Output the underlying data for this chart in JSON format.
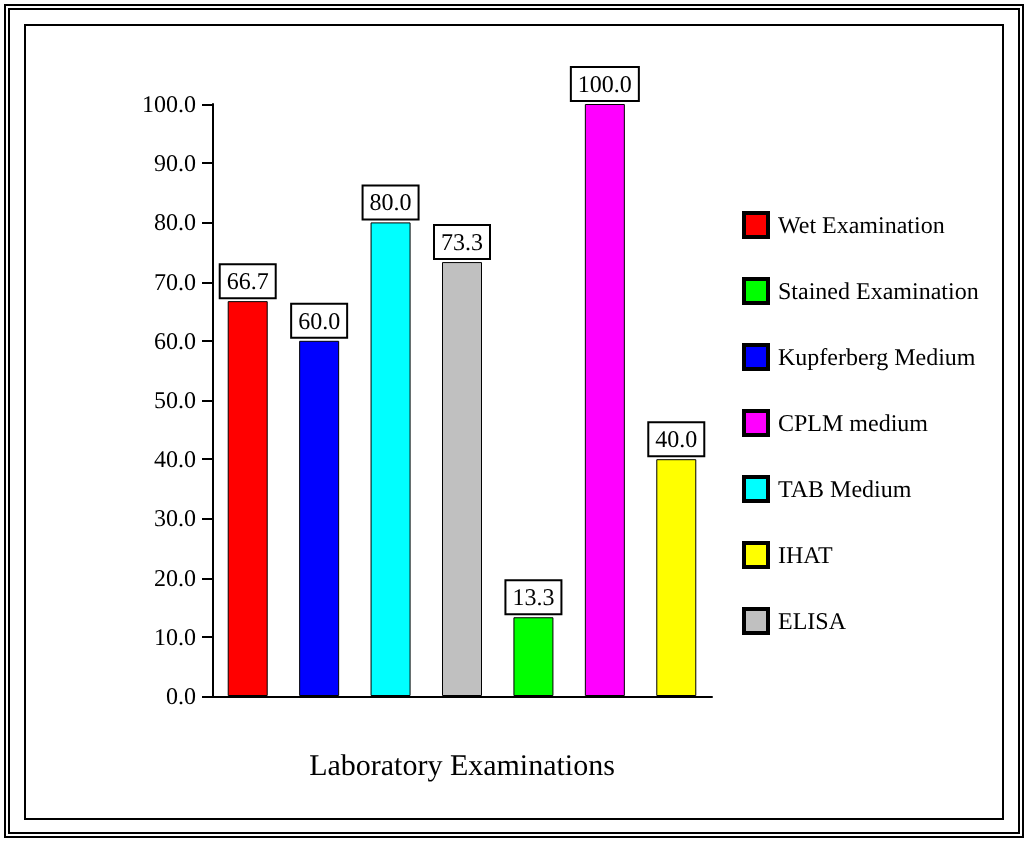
{
  "chart_data": {
    "type": "bar",
    "xlabel": "Laboratory Examinations",
    "categories": [
      null,
      null,
      null,
      null,
      null,
      null,
      null
    ],
    "series": [
      {
        "name": "Wet Examination",
        "color": "#ff0000",
        "values": [
          66.7,
          null,
          null,
          null,
          null,
          null,
          null
        ],
        "value_labels": [
          "66.7",
          null,
          null,
          null,
          null,
          null,
          null
        ]
      },
      {
        "name": "Stained Examination",
        "color": "#00ff00",
        "values": [
          null,
          null,
          null,
          null,
          13.3,
          null,
          null
        ],
        "value_labels": [
          null,
          null,
          null,
          null,
          "13.3",
          null,
          null
        ]
      },
      {
        "name": "Kupferberg Medium",
        "color": "#0000ff",
        "values": [
          null,
          60.0,
          null,
          null,
          null,
          null,
          null
        ],
        "value_labels": [
          null,
          "60.0",
          null,
          null,
          null,
          null,
          null
        ]
      },
      {
        "name": "CPLM medium",
        "color": "#ff00ff",
        "values": [
          null,
          null,
          null,
          null,
          null,
          100.0,
          null
        ],
        "value_labels": [
          null,
          null,
          null,
          null,
          null,
          "100.0",
          null
        ]
      },
      {
        "name": "TAB Medium",
        "color": "#00ffff",
        "values": [
          null,
          null,
          80.0,
          null,
          null,
          null,
          null
        ],
        "value_labels": [
          null,
          null,
          "80.0",
          null,
          null,
          null,
          null
        ]
      },
      {
        "name": "IHAT",
        "color": "#ffff00",
        "values": [
          null,
          null,
          null,
          null,
          null,
          null,
          40.0
        ],
        "value_labels": [
          null,
          null,
          null,
          null,
          null,
          null,
          "40.0"
        ]
      },
      {
        "name": "ELISA",
        "color": "#c0c0c0",
        "values": [
          null,
          null,
          null,
          73.3,
          null,
          null,
          null
        ],
        "value_labels": [
          null,
          null,
          null,
          "73.3",
          null,
          null,
          null
        ]
      }
    ],
    "ylim": [
      0,
      100
    ],
    "yticks": [
      {
        "value": 0,
        "label": "0.0"
      },
      {
        "value": 10,
        "label": "10.0"
      },
      {
        "value": 20,
        "label": "20.0"
      },
      {
        "value": 30,
        "label": "30.0"
      },
      {
        "value": 40,
        "label": "40.0"
      },
      {
        "value": 50,
        "label": "50.0"
      },
      {
        "value": 60,
        "label": "60.0"
      },
      {
        "value": 70,
        "label": "70.0"
      },
      {
        "value": 80,
        "label": "80.0"
      },
      {
        "value": 90,
        "label": "90.0"
      },
      {
        "value": 100,
        "label": "100.0"
      }
    ],
    "grid": false,
    "legend": "right",
    "tick_labels": "y"
  }
}
